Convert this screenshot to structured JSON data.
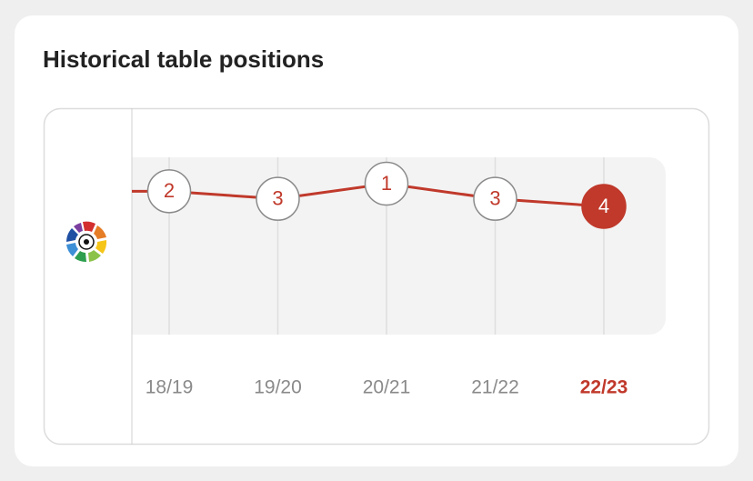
{
  "chart_data": {
    "type": "line",
    "title": "Historical table positions",
    "categories": [
      "18/19",
      "19/20",
      "20/21",
      "21/22",
      "22/23"
    ],
    "values": [
      2,
      3,
      1,
      3,
      4
    ],
    "color": "#c0392b",
    "ylim": [
      1,
      4
    ],
    "invert_y": true,
    "highlight_index": 4
  }
}
